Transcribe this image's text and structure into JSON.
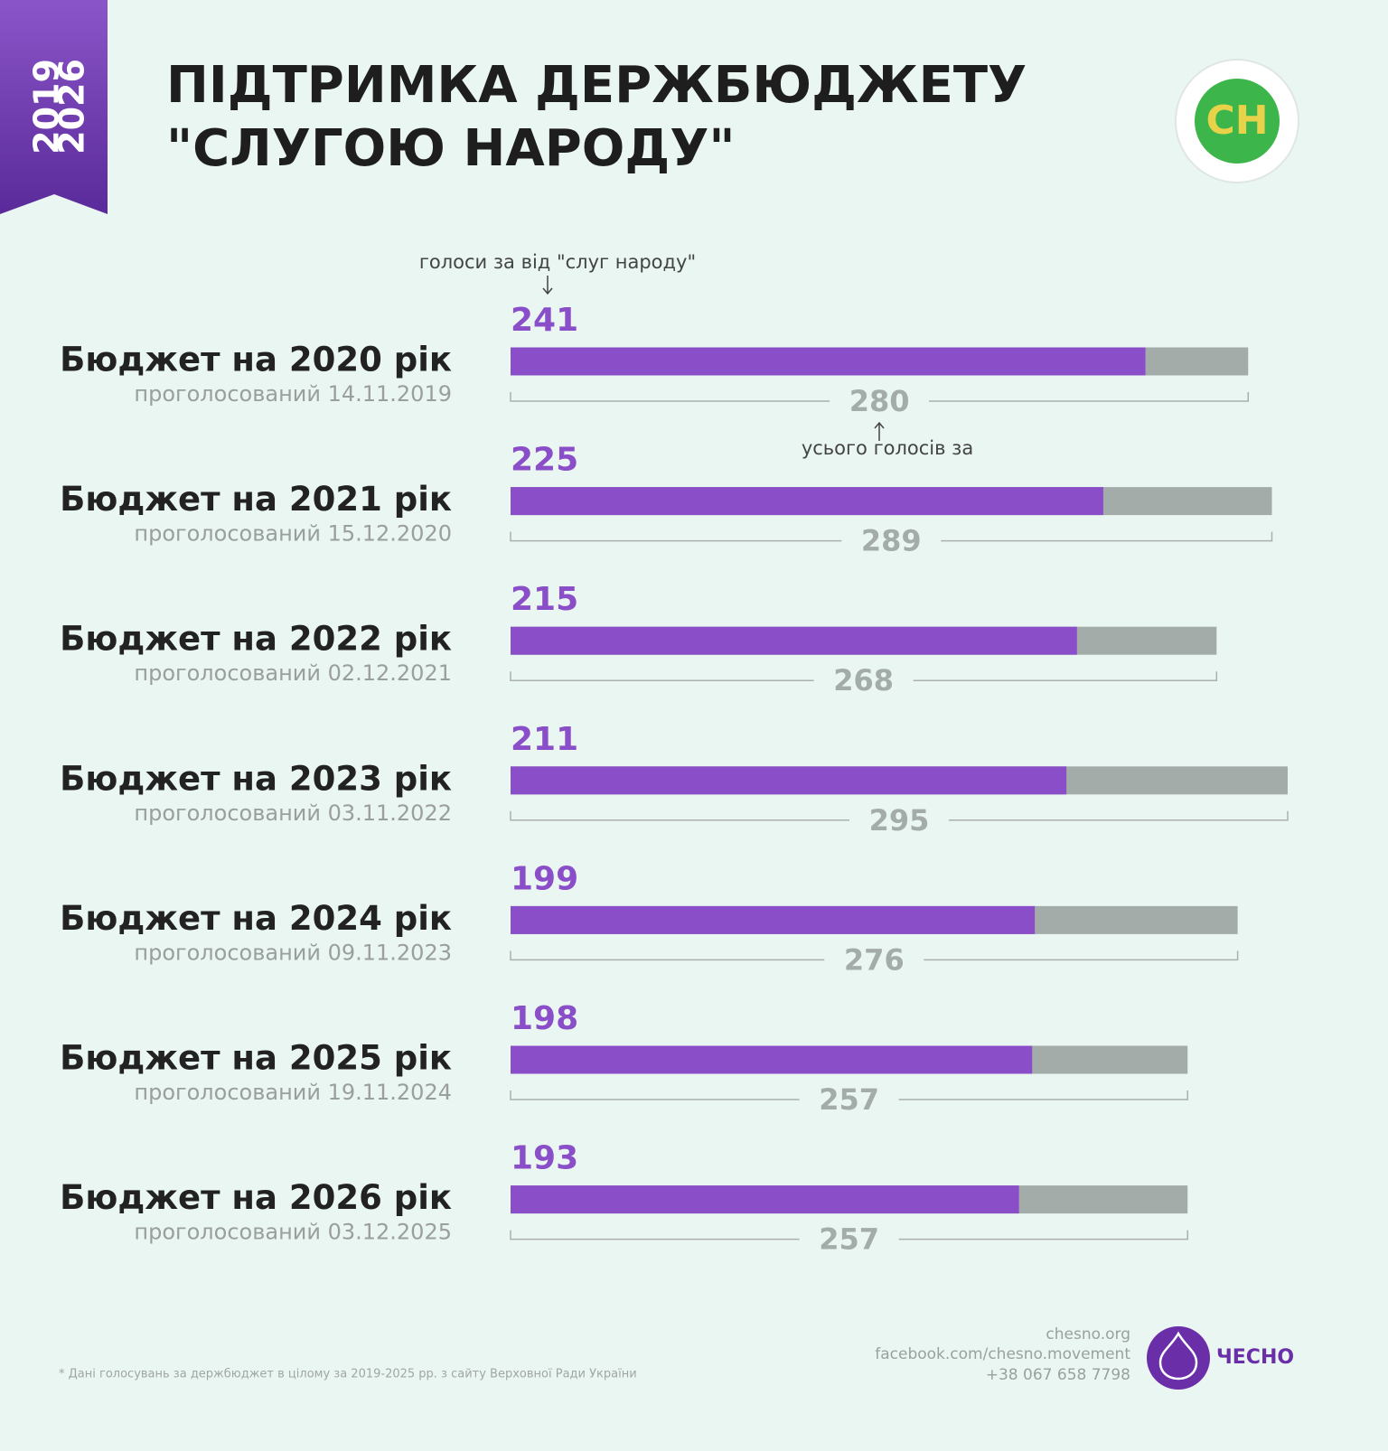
{
  "chart_data": {
    "type": "bar",
    "badge": [
      "2019",
      "2026"
    ],
    "title": [
      "ПІДТРИМКА ДЕРЖБЮДЖЕТУ",
      "\"СЛУГОЮ НАРОДУ\""
    ],
    "logo": "CH",
    "categories": [
      "Бюджет на 2020 рік",
      "Бюджет на 2021 рік",
      "Бюджет на 2022 рік",
      "Бюджет на 2023 рік",
      "Бюджет на 2024 рік",
      "Бюджет на 2025 рік",
      "Бюджет на 2026 рік"
    ],
    "category_notes": [
      "проголосований 14.11.2019",
      "проголосований 15.12.2020",
      "проголосований 02.12.2021",
      "проголосований 03.11.2022",
      "проголосований 09.11.2023",
      "проголосований 19.11.2024",
      "проголосований 03.12.2025"
    ],
    "series": [
      {
        "name": "голоси за від \"слуг народу\"",
        "color": "#8a4fc8",
        "values": [
          241,
          225,
          215,
          211,
          199,
          198,
          193
        ]
      },
      {
        "name": "усього голосів за",
        "color": "#a3aca9",
        "values": [
          280,
          289,
          268,
          295,
          276,
          257,
          257
        ]
      }
    ],
    "footnote": "* Дані голосувань за держбюджет в цілому за 2019-2025 рр. з сайту Верховної Ради України",
    "contacts": [
      "chesno.org",
      "facebook.com/chesno.movement",
      "+38 067 658 7798"
    ],
    "brand": "ЧЕСНО"
  }
}
